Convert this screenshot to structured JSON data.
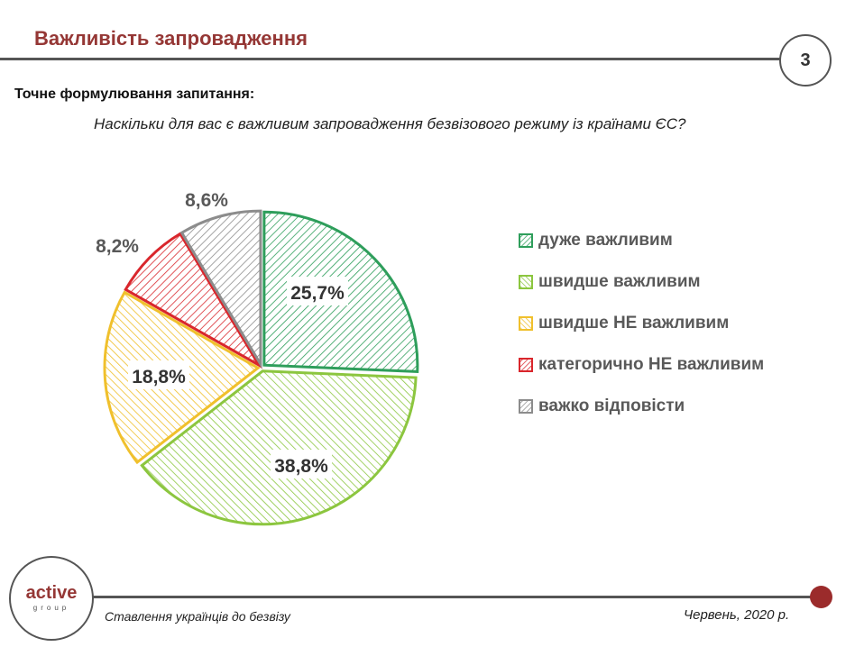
{
  "header": {
    "title": "Важливість запровадження",
    "page_number": "3"
  },
  "question": {
    "label": "Точне формулювання запитання:",
    "text": "Наскільки для вас є важливим запровадження безвізового режиму із країнами ЄС?"
  },
  "chart_data": {
    "type": "pie",
    "categories": [
      "дуже важливим",
      "швидше важливим",
      "швидше НЕ важливим",
      "категорично НЕ важливим",
      "важко відповісти"
    ],
    "values": [
      25.7,
      38.8,
      18.8,
      8.2,
      8.6
    ],
    "labels": [
      "25,7%",
      "38,8%",
      "18,8%",
      "8,2%",
      "8,6%"
    ],
    "colors": [
      "#2e9e5b",
      "#8cc63f",
      "#f0c02c",
      "#d9262c",
      "#8c8c8c"
    ],
    "hatch": [
      "down",
      "up",
      "up",
      "down",
      "down"
    ],
    "start": "top",
    "direction": "clockwise",
    "legend_placement": "right"
  },
  "logo": {
    "text": "active",
    "sub": "group"
  },
  "footer": {
    "left": "Ставлення українців до безвізу",
    "right": "Червень, 2020 р."
  }
}
